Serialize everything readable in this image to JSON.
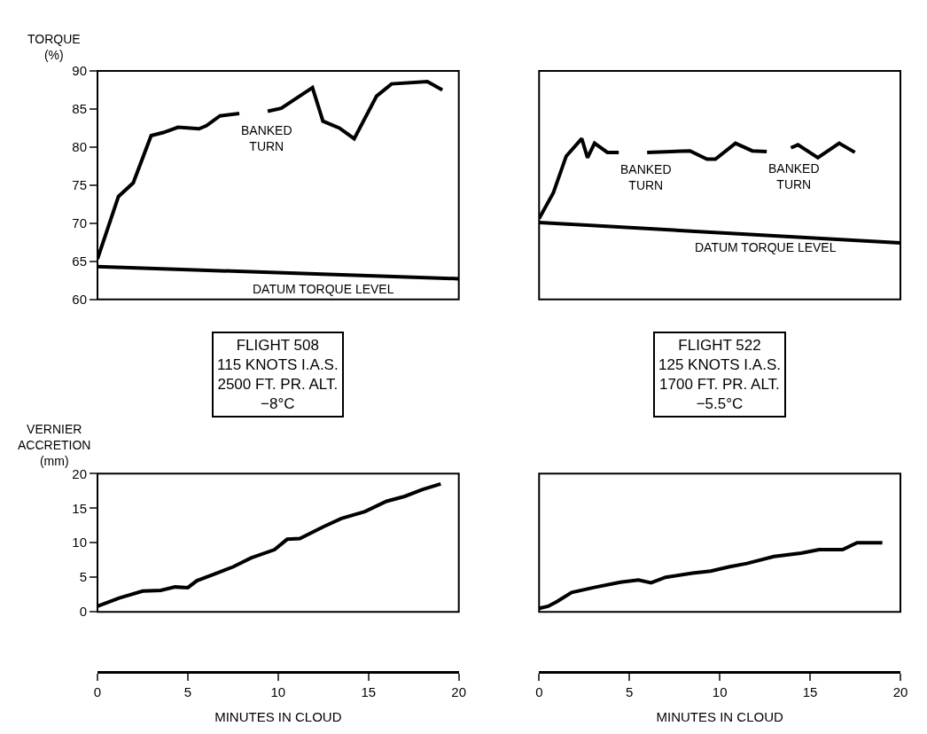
{
  "chart_data": [
    {
      "type": "line",
      "ylabel": "TORQUE\n(%)",
      "xlim": [
        0,
        20
      ],
      "ylim": [
        60,
        90
      ],
      "yticks": [
        60,
        65,
        70,
        75,
        80,
        85,
        90
      ],
      "tick_labels": "y",
      "series": [
        {
          "color": "#000000",
          "x": [
            0,
            1.16,
            1.98,
            2.97,
            3.64,
            4.46,
            5.62,
            6.03,
            6.78,
            7.85,
            8.6,
            9.42,
            10.17,
            11.9,
            12.48,
            13.39,
            14.21,
            15.45,
            16.28,
            18.26,
            19.09
          ],
          "values": [
            65.3,
            73.5,
            75.3,
            81.5,
            81.9,
            82.6,
            82.4,
            82.8,
            84.1,
            84.4,
            null,
            84.7,
            85.1,
            87.8,
            83.4,
            82.5,
            81.1,
            86.7,
            88.3,
            88.6,
            87.5
          ]
        },
        {
          "color": "#000000",
          "x": [
            0,
            20
          ],
          "values": [
            64.3,
            62.7
          ]
        }
      ],
      "annotations": [
        {
          "text": "BANKED\nTURN",
          "x": 7.85,
          "y": 84.4
        },
        {
          "text": "DATUM TORQUE LEVEL",
          "x": 8.5,
          "y": 63.6
        },
        "FLIGHT 508\n115 KNOTS I.A.S.\n2500 FT. PR. ALT.\n−8°C"
      ]
    },
    {
      "type": "line",
      "xlim": [
        0,
        20
      ],
      "ylim": [
        60,
        90
      ],
      "tick_labels": false,
      "series": [
        {
          "color": "#000000",
          "x": [
            0,
            0.79,
            1.5,
            2.36,
            2.68,
            3.07,
            3.78,
            4.41,
            5.2,
            5.98,
            8.35,
            9.29,
            9.76,
            10.87,
            11.8,
            12.6,
            13.3,
            13.94,
            14.33,
            15.43,
            16.61,
            17.48
          ],
          "values": [
            70.6,
            74.0,
            78.8,
            81.1,
            78.6,
            80.5,
            79.3,
            79.3,
            null,
            79.3,
            79.5,
            78.4,
            78.4,
            80.5,
            79.5,
            79.4,
            null,
            79.9,
            80.3,
            78.6,
            80.5,
            79.3
          ]
        },
        {
          "color": "#000000",
          "x": [
            0,
            20
          ],
          "values": [
            70.1,
            67.4
          ]
        }
      ],
      "annotations": [
        {
          "text": "BANKED\nTURN",
          "x": 4.41,
          "y": 79.3
        },
        {
          "text": "BANKED\nTURN",
          "x": 12.6,
          "y": 79.4
        },
        {
          "text": "DATUM TORQUE LEVEL",
          "x": 8.5,
          "y": 69.0
        },
        "FLIGHT 522\n125 KNOTS I.A.S.\n1700 FT. PR. ALT.\n−5.5°C"
      ]
    },
    {
      "type": "line",
      "ylabel": "VERNIER\nACCRETION\n(mm)",
      "xlabel": "MINUTES IN CLOUD",
      "xlim": [
        0,
        20
      ],
      "xticks": [
        0,
        5,
        10,
        15,
        20
      ],
      "ylim": [
        0,
        20
      ],
      "yticks": [
        0,
        5,
        10,
        15,
        20
      ],
      "series": [
        {
          "color": "#000000",
          "x": [
            0,
            1.2,
            2.5,
            3.5,
            4.3,
            5.0,
            5.5,
            6.5,
            7.5,
            8.5,
            9.8,
            10.5,
            11.2,
            12.5,
            13.5,
            14.8,
            16.0,
            17.0,
            18.0,
            19.0
          ],
          "values": [
            0.8,
            2.0,
            3.0,
            3.1,
            3.6,
            3.5,
            4.5,
            5.5,
            6.5,
            7.8,
            9.0,
            10.5,
            10.6,
            12.3,
            13.5,
            14.5,
            16.0,
            16.7,
            17.7,
            18.5
          ]
        }
      ]
    },
    {
      "type": "line",
      "xlabel": "MINUTES IN CLOUD",
      "xlim": [
        0,
        20
      ],
      "xticks": [
        0,
        5,
        10,
        15,
        20
      ],
      "ylim": [
        0,
        20
      ],
      "tick_labels": "x",
      "series": [
        {
          "color": "#000000",
          "x": [
            0,
            0.5,
            1.0,
            1.8,
            3.0,
            4.5,
            5.5,
            6.2,
            7.0,
            8.5,
            9.5,
            10.5,
            11.5,
            13.0,
            14.5,
            15.5,
            16.8,
            17.6,
            19.0
          ],
          "values": [
            0.5,
            0.8,
            1.5,
            2.8,
            3.5,
            4.3,
            4.6,
            4.2,
            5.0,
            5.6,
            5.9,
            6.5,
            7.0,
            8.0,
            8.5,
            9.0,
            9.0,
            10.0,
            10.0
          ]
        }
      ]
    }
  ]
}
